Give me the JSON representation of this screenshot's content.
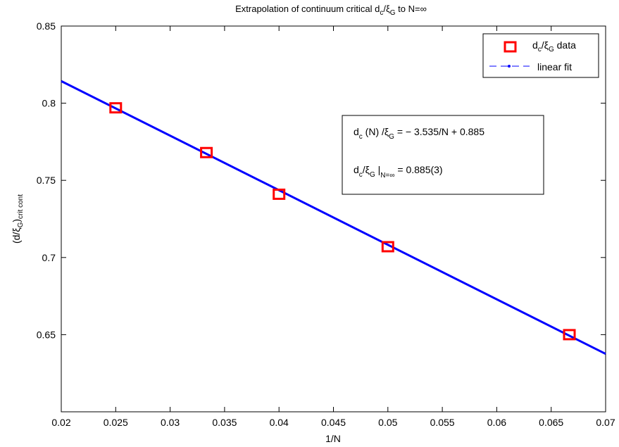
{
  "chart_data": {
    "type": "scatter",
    "title": "Extrapolation of continuum critical d_c/ξ_G to N=∞",
    "title_parts": {
      "a": "Extrapolation of continuum critical d",
      "b": "c",
      "c": "/ξ",
      "d": "G",
      "e": " to N=∞"
    },
    "xlabel": "1/N",
    "ylabel": "(d/ξ_G)_crit cont",
    "ylabel_parts": {
      "a": "(d/ξ",
      "b": "G",
      "c": ")",
      "d": "crit cont"
    },
    "xlim": [
      0.02,
      0.07
    ],
    "ylim": [
      0.6,
      0.85
    ],
    "xticks": [
      0.02,
      0.025,
      0.03,
      0.035,
      0.04,
      0.045,
      0.05,
      0.055,
      0.06,
      0.065,
      0.07
    ],
    "xtick_labels": [
      "0.02",
      "0.025",
      "0.03",
      "0.035",
      "0.04",
      "0.045",
      "0.05",
      "0.055",
      "0.06",
      "0.065",
      "0.07"
    ],
    "yticks": [
      0.65,
      0.7,
      0.75,
      0.8,
      0.85
    ],
    "ytick_labels": [
      "0.65",
      "0.7",
      "0.75",
      "0.8",
      "0.85"
    ],
    "grid": false,
    "legend_position": "top-right",
    "series": [
      {
        "name": "d_c/ξ_G data",
        "kind": "markers",
        "marker": "square",
        "color": "#ff0000",
        "x": [
          0.025,
          0.03333,
          0.04,
          0.05,
          0.06667
        ],
        "y": [
          0.797,
          0.768,
          0.741,
          0.707,
          0.65
        ]
      },
      {
        "name": "linear fit",
        "kind": "line",
        "color": "#0000ff",
        "slope": -3.535,
        "intercept": 0.885,
        "x": [
          0.02,
          0.07
        ],
        "y": [
          0.8143,
          0.63755
        ]
      }
    ],
    "legend": {
      "data_label_parts": {
        "a": "d",
        "b": "c",
        "c": "/ξ",
        "d": "G",
        "e": " data"
      },
      "fit_label": "linear fit"
    },
    "annotation": {
      "line1_parts": {
        "a": "d",
        "b": "c",
        "c": " (N) /ξ",
        "d": "G",
        "e": " = − 3.535/N + 0.885"
      },
      "line2_parts": {
        "a": "d",
        "b": "c",
        "c": "/ξ",
        "d": "G",
        "e": " |",
        "f": "N=∞",
        "g": " = 0.885(3)"
      }
    }
  }
}
